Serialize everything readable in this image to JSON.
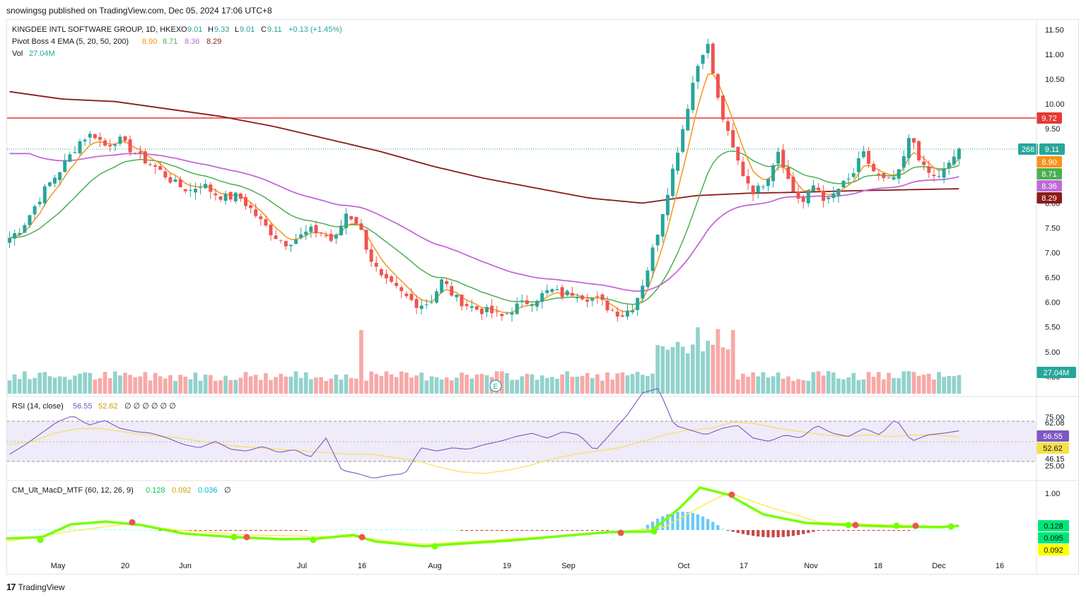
{
  "header": {
    "publisher": "snowingsg published on TradingView.com, Dec 05, 2024 17:06 UTC+8"
  },
  "legend": {
    "symbol": "KINGDEE INTL SOFTWARE GROUP, 1D, HKEX",
    "o_label": "O",
    "o_value": "9.01",
    "h_label": "H",
    "h_value": "9.33",
    "l_label": "L",
    "l_value": "9.01",
    "c_label": "C",
    "c_value": "9.11",
    "change": "+0.13 (+1.45%)",
    "ema_label": "Pivot Boss 4 EMA (5, 20, 50, 200)",
    "ema_values": [
      "8.90",
      "8.71",
      "8.36",
      "8.29"
    ],
    "vol_label": "Vol",
    "vol_value": "27.04M",
    "rsi_label": "RSI (14, close)",
    "rsi_values": [
      "56.55",
      "52.62"
    ],
    "rsi_extra": "∅ ∅ ∅ ∅ ∅ ∅",
    "macd_label": "CM_Ult_MacD_MTF (60, 12, 26, 9)",
    "macd_values": [
      "0.128",
      "0.092",
      "0.036"
    ],
    "macd_extra": "∅"
  },
  "colors": {
    "up": "#26a69a",
    "down": "#ef5350",
    "ema5": "#f7931a",
    "ema20": "#4caf50",
    "ema50": "#c06ad6",
    "ema200": "#8b1a1a",
    "resistance": "#e53935",
    "rsi": "#7e57c2",
    "rsi_ma": "#f5e04a"
  },
  "chart_data": [
    {
      "type": "candlestick",
      "title": "KINGDEE INTL SOFTWARE GROUP, 1D, HKEX",
      "price_axis_ticks": [
        "11.50",
        "11.00",
        "10.50",
        "10.00",
        "9.50",
        "8.00",
        "7.50",
        "7.00",
        "6.50",
        "6.00",
        "5.50",
        "5.00",
        "4.50"
      ],
      "ylim": [
        4.4,
        11.6
      ],
      "x_tick_labels": [
        "May",
        "20",
        "Jun",
        "Jul",
        "16",
        "Aug",
        "19",
        "Sep",
        "Oct",
        "17",
        "Nov",
        "18",
        "Dec",
        "16"
      ],
      "resistance_level": 9.72,
      "last_close": 9.11,
      "countdown": "268",
      "price_labels": {
        "resistance": "9.72",
        "close": "9.11",
        "ema5": "8.90",
        "ema20": "8.71",
        "ema50": "8.36",
        "ema200": "8.29",
        "volume": "27.04M"
      },
      "close_path": [
        7.3,
        7.5,
        7.9,
        8.3,
        8.6,
        8.95,
        9.3,
        9.4,
        9.15,
        9.3,
        9.1,
        8.9,
        8.75,
        8.55,
        8.35,
        8.25,
        8.4,
        8.2,
        8.1,
        8.15,
        7.9,
        7.6,
        7.35,
        7.2,
        7.3,
        7.45,
        7.4,
        7.2,
        7.8,
        7.6,
        6.9,
        6.45,
        6.3,
        6.1,
        5.95,
        6.0,
        6.45,
        6.1,
        5.95,
        5.85,
        5.8,
        5.7,
        5.9,
        6.0,
        6.1,
        6.25,
        6.15,
        6.2,
        6.1,
        6.05,
        5.85,
        5.75,
        5.95,
        6.6,
        7.5,
        8.5,
        9.5,
        10.6,
        11.3,
        10.0,
        9.2,
        8.6,
        8.2,
        8.5,
        9.1,
        8.3,
        8.0,
        8.4,
        8.0,
        8.3,
        8.5,
        9.0,
        8.6,
        8.4,
        8.6,
        9.4,
        8.7,
        8.5,
        8.7,
        9.11
      ],
      "ema_series": [
        {
          "name": "EMA 5",
          "last": 8.9
        },
        {
          "name": "EMA 20",
          "last": 8.71
        },
        {
          "name": "EMA 50",
          "last": 8.36
        },
        {
          "name": "EMA 200",
          "last": 8.29
        }
      ],
      "ema200_path": [
        10.25,
        10.1,
        10.05,
        9.9,
        9.75,
        9.55,
        9.3,
        9.05,
        8.75,
        8.5,
        8.3,
        8.1,
        8.0,
        8.15,
        8.2,
        8.22,
        8.25,
        8.27,
        8.29
      ],
      "volume_last": "27.04M",
      "volume_marker": "E"
    },
    {
      "type": "line",
      "title": "RSI (14, close)",
      "ylim": [
        20,
        85
      ],
      "tick_labels": [
        "75.00",
        "62.08",
        "46.15",
        "25.00"
      ],
      "band": [
        37.5,
        62.5
      ],
      "mid": 50,
      "series": [
        {
          "name": "RSI",
          "last": 56.55
        },
        {
          "name": "RSI MA",
          "last": 52.62
        }
      ],
      "rsi_path": [
        42,
        48,
        55,
        62,
        66,
        60,
        63,
        58,
        56,
        55,
        52,
        48,
        46,
        50,
        45,
        44,
        47,
        43,
        45,
        40,
        52,
        32,
        30,
        27,
        29,
        30,
        46,
        44,
        46,
        45,
        48,
        50,
        53,
        55,
        52,
        56,
        54,
        44,
        55,
        66,
        80,
        83,
        60,
        57,
        54,
        58,
        60,
        52,
        50,
        54,
        52,
        60,
        55,
        53,
        58,
        54,
        64,
        50,
        54,
        55,
        56.55
      ],
      "rsi_ma_path": [
        48,
        50,
        55,
        58,
        58,
        56,
        54,
        53,
        51,
        49,
        47,
        46,
        45,
        44,
        43,
        42,
        42,
        40,
        38,
        34,
        31,
        30,
        32,
        35,
        39,
        42,
        44,
        46,
        50,
        54,
        57,
        58,
        62,
        61,
        58,
        56,
        54,
        53,
        54,
        53,
        54,
        54,
        52.62
      ]
    },
    {
      "type": "line",
      "title": "CM_Ult_MacD_MTF (60, 12, 26, 9)",
      "ylim": [
        -0.1,
        1.1
      ],
      "tick_labels": [
        "1.00"
      ],
      "series": [
        {
          "name": "MACD",
          "last": 0.128
        },
        {
          "name": "Signal",
          "last": 0.092
        },
        {
          "name": "Histogram",
          "last": 0.036
        }
      ],
      "value_labels": [
        "0.128",
        "0.095",
        "0.092"
      ]
    }
  ]
}
